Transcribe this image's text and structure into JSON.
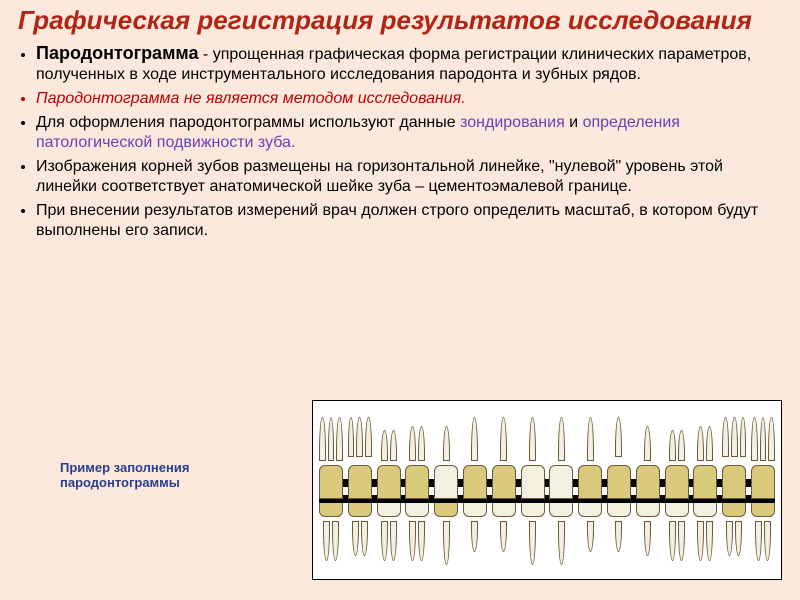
{
  "colors": {
    "background": "#fce8dc",
    "title": "#b22514",
    "text": "#000000",
    "red_italic": "#c00000",
    "link_purple": "#6a3fb5",
    "caption": "#2a3f8f",
    "tooth_fill": "#f4f0e0",
    "tooth_border": "#6a5a3a",
    "affected_fill": "#d9c97a",
    "gumline": "#000000",
    "diagram_bg": "#ffffff"
  },
  "title": "Графическая регистрация результатов исследования",
  "bullets": [
    {
      "term": "Пародонтограмма",
      "text": " - упрощенная графическая форма регистрации клинических параметров, полученных в ходе инструментального исследования пародонта и зубных рядов."
    },
    {
      "style": "italic-red",
      "text": "Пародонтограмма не является методом исследования."
    },
    {
      "pre": "Для оформления пародонтограммы используют данные ",
      "link1": "зондирования",
      "mid": " и ",
      "link2": "определения патологической подвижности зуба."
    },
    {
      "text": "Изображения корней зубов размещены на горизонтальной линейке, \"нулевой\" уровень этой линейки соответствует анатомической шейке зуба – цементоэмалевой границе."
    },
    {
      "text": "При внесении результатов измерений врач должен строго определить масштаб, в котором будут выполнены его записи."
    }
  ],
  "caption": "Пример заполнения пародонтограммы",
  "diagram": {
    "type": "infographic",
    "tooth_count_per_arch": 16,
    "upper": {
      "roots": [
        3,
        3,
        2,
        2,
        1,
        1,
        1,
        1,
        1,
        1,
        1,
        1,
        2,
        2,
        3,
        3
      ],
      "affected": [
        1,
        1,
        0,
        0,
        1,
        0,
        0,
        0,
        0,
        0,
        0,
        0,
        0,
        0,
        1,
        1
      ],
      "root_len": [
        1,
        0.9,
        0.7,
        0.8,
        0.8,
        1,
        1,
        1,
        1,
        1,
        0.9,
        0.8,
        0.7,
        0.8,
        0.9,
        1
      ]
    },
    "lower": {
      "roots": [
        2,
        2,
        2,
        2,
        1,
        1,
        1,
        1,
        1,
        1,
        1,
        1,
        2,
        2,
        2,
        2
      ],
      "affected": [
        1,
        1,
        1,
        1,
        0,
        1,
        1,
        0,
        0,
        1,
        1,
        1,
        1,
        1,
        1,
        1
      ],
      "root_len": [
        0.9,
        0.8,
        0.9,
        0.9,
        1,
        0.7,
        0.7,
        1,
        1,
        0.7,
        0.7,
        0.8,
        0.9,
        0.9,
        0.8,
        0.9
      ]
    }
  }
}
